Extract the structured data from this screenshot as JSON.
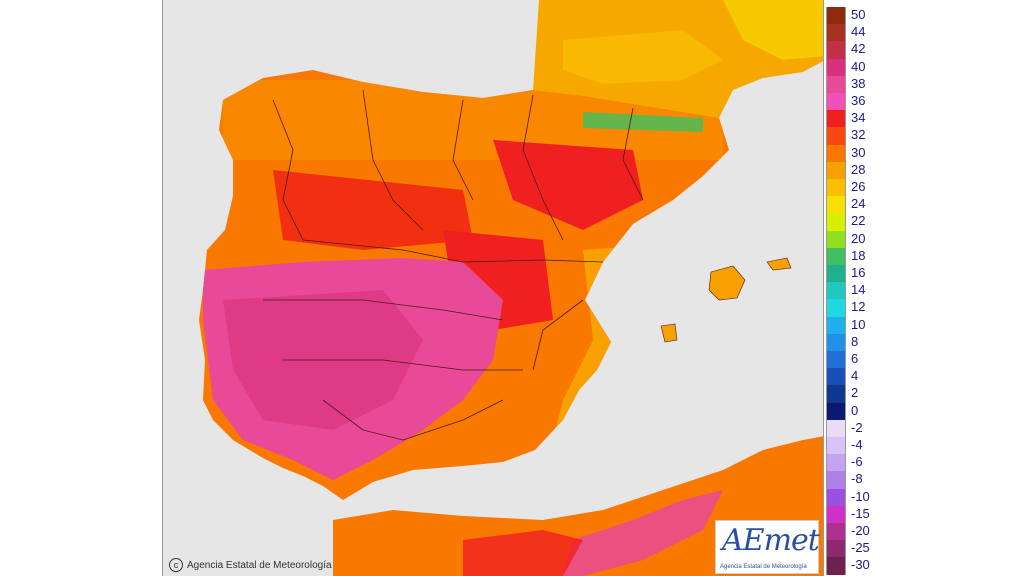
{
  "map": {
    "copyright_text": "Agencia Estatal de Meteorología",
    "logo_text": "AEmet",
    "logo_subtitle": "Agencia Estatal de Meteorología",
    "land_color": "#f7a800",
    "sea_color": "#e6e6e6"
  },
  "legend": {
    "items": [
      {
        "label": "50",
        "color": "#8b2c0c"
      },
      {
        "label": "44",
        "color": "#a83220"
      },
      {
        "label": "42",
        "color": "#c03048"
      },
      {
        "label": "40",
        "color": "#d8307a"
      },
      {
        "label": "38",
        "color": "#e84a98"
      },
      {
        "label": "36",
        "color": "#f050b8"
      },
      {
        "label": "34",
        "color": "#f02020"
      },
      {
        "label": "32",
        "color": "#f84a10"
      },
      {
        "label": "30",
        "color": "#f87800"
      },
      {
        "label": "28",
        "color": "#f8a000"
      },
      {
        "label": "26",
        "color": "#f8c000"
      },
      {
        "label": "24",
        "color": "#f8e000"
      },
      {
        "label": "22",
        "color": "#d8f000"
      },
      {
        "label": "20",
        "color": "#90e020"
      },
      {
        "label": "18",
        "color": "#40c060"
      },
      {
        "label": "16",
        "color": "#20b090"
      },
      {
        "label": "14",
        "color": "#20c8c0"
      },
      {
        "label": "12",
        "color": "#20d8e0"
      },
      {
        "label": "10",
        "color": "#20b0f0"
      },
      {
        "label": "8",
        "color": "#2090e8"
      },
      {
        "label": "6",
        "color": "#2070d8"
      },
      {
        "label": "4",
        "color": "#1850b8"
      },
      {
        "label": "2",
        "color": "#103890"
      },
      {
        "label": "0",
        "color": "#0a1a70"
      },
      {
        "label": "-2",
        "color": "#e8dcf8"
      },
      {
        "label": "-4",
        "color": "#d8c4f4"
      },
      {
        "label": "-6",
        "color": "#c4a4ee"
      },
      {
        "label": "-8",
        "color": "#b080e8"
      },
      {
        "label": "-10",
        "color": "#9a50e0"
      },
      {
        "label": "-15",
        "color": "#d030c8"
      },
      {
        "label": "-20",
        "color": "#b03090"
      },
      {
        "label": "-25",
        "color": "#902870"
      },
      {
        "label": "-30",
        "color": "#702050"
      }
    ]
  }
}
